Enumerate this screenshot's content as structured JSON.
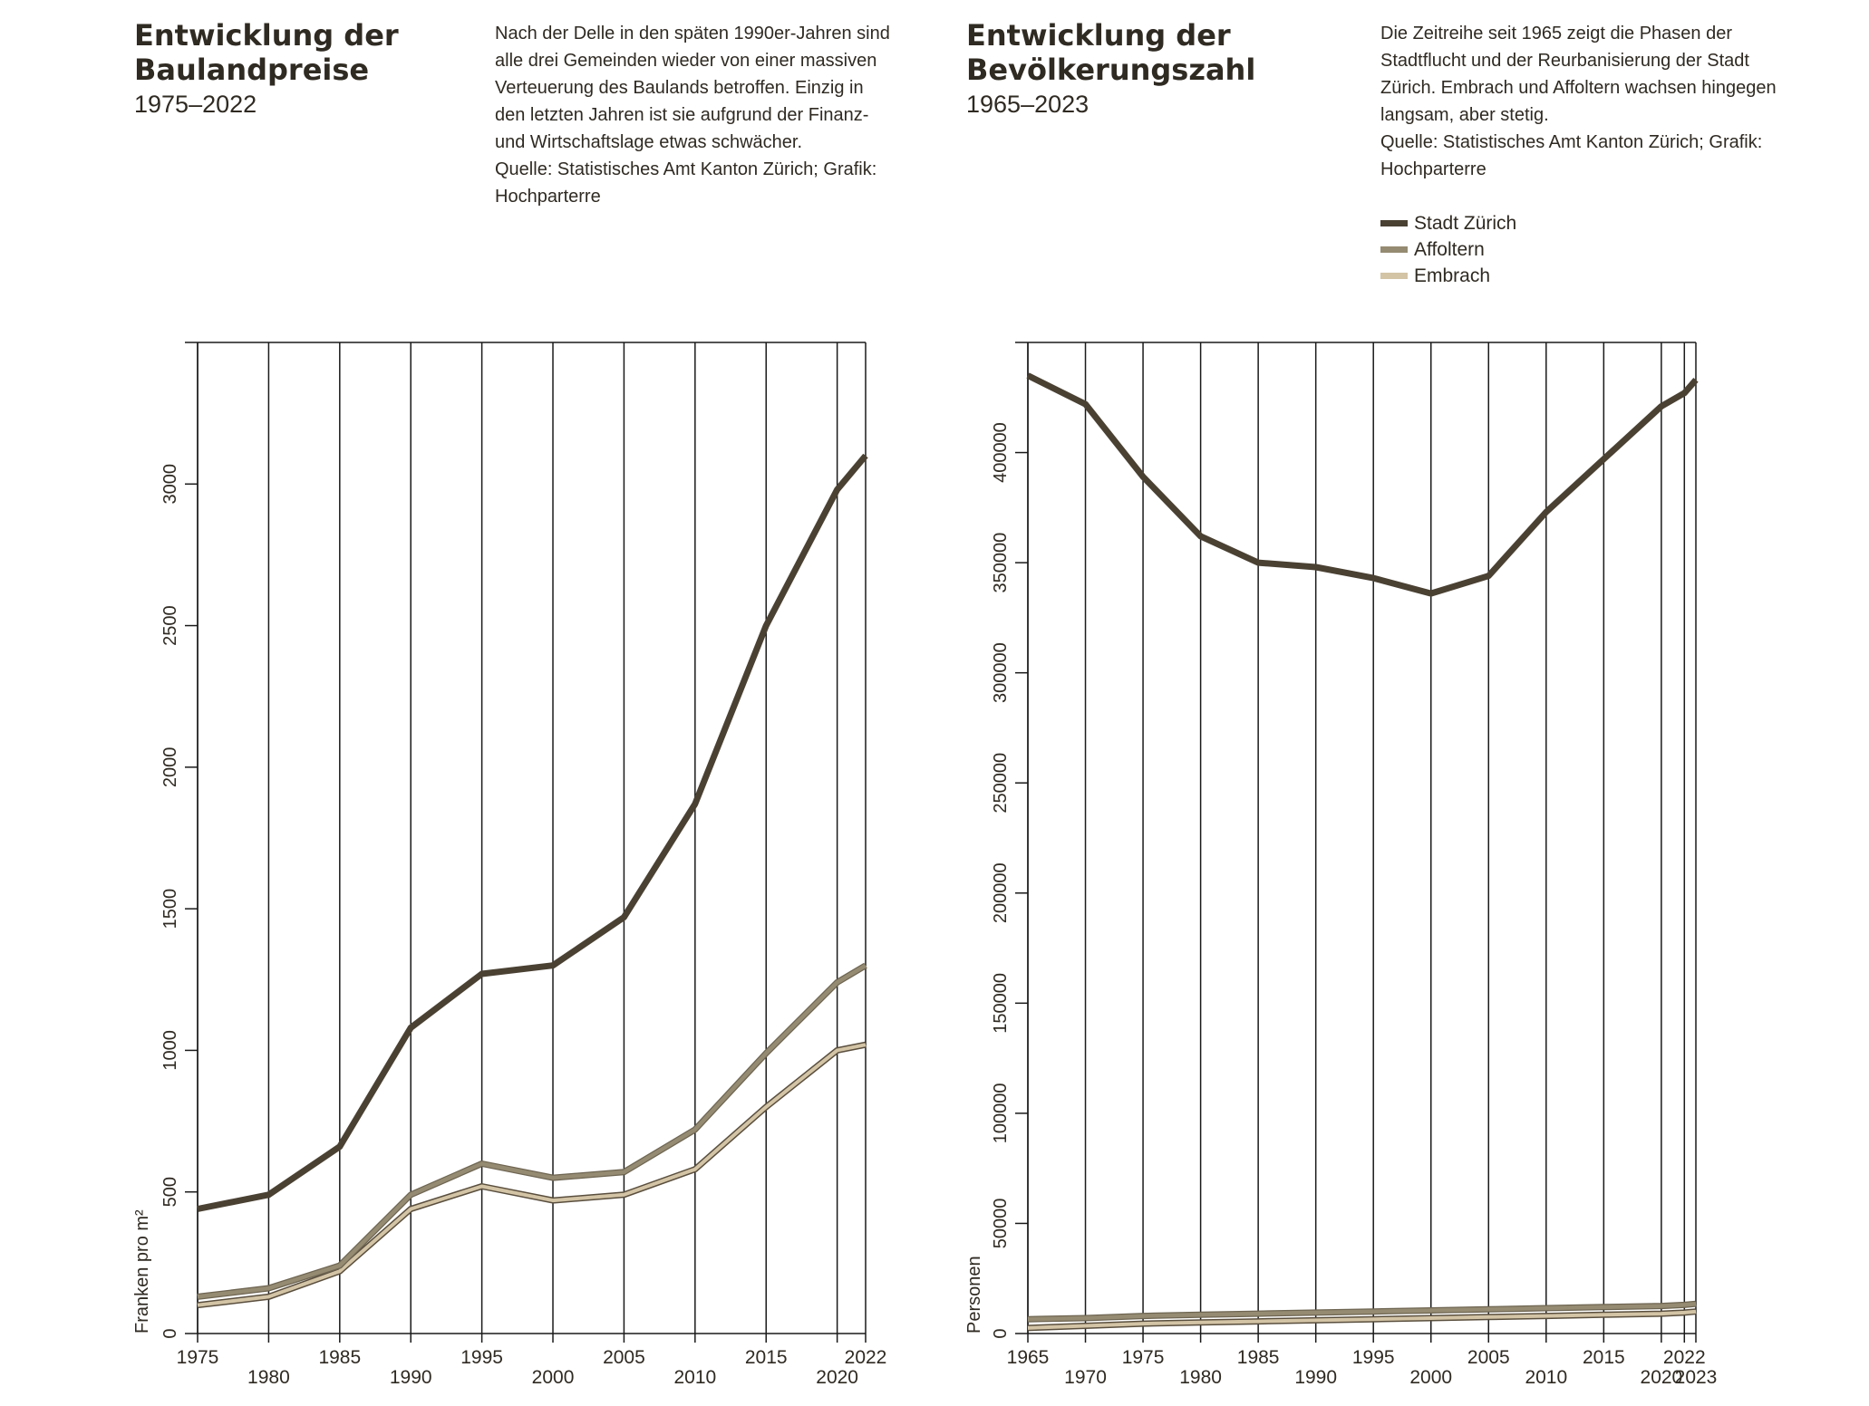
{
  "panels": {
    "left": {
      "title": "Entwicklung der\nBaulandpreise",
      "years": "1975–2022",
      "description": "Nach der Delle in den späten 1990er-Jahren sind alle drei Gemeinden wieder von einer massiven Verteuerung des Baulands betroffen. Einzig in den letzten Jahren ist sie aufgrund der Finanz- und Wirtschaftslage etwas schwächer.",
      "source": "Quelle: Statistisches Amt Kanton Zürich; Grafik: Hochparterre"
    },
    "right": {
      "title": "Entwicklung der\nBevölkerungszahl",
      "years": "1965–2023",
      "description": "Die Zeitreihe seit 1965 zeigt die Phasen der Stadtflucht und der Reurbanisierung der Stadt Zürich. Embrach und Affoltern wachsen hingegen langsam, aber stetig.",
      "source": "Quelle: Statistisches Amt Kanton Zürich; Grafik: Hochparterre"
    }
  },
  "legend": [
    {
      "label": "Stadt Zürich",
      "color": "#4a4133"
    },
    {
      "label": "Affoltern",
      "color": "#958b72"
    },
    {
      "label": "Embrach",
      "color": "#d3c4a6"
    }
  ],
  "colors": {
    "stadt_zuerich": "#4a4133",
    "affoltern": "#958b72",
    "embrach": "#d3c4a6",
    "embrach_outline": "#5a4f3e",
    "grid": "#1a1a1a",
    "text": "#2f2a22"
  },
  "chart_data": [
    {
      "type": "line",
      "title": "Entwicklung der Baulandpreise",
      "ylabel": "Franken pro m²",
      "xlabel": "",
      "x": [
        "1975",
        "1980",
        "1985",
        "1990",
        "1995",
        "2000",
        "2005",
        "2010",
        "2015",
        "2020",
        "2022"
      ],
      "x_tick_labels": [
        "1975",
        "1980",
        "1985",
        "1990",
        "1995",
        "2000",
        "2005",
        "2010",
        "2015",
        "2020",
        "2022"
      ],
      "y_ticks": [
        0,
        500,
        1000,
        1500,
        2000,
        2500,
        3000
      ],
      "ylim": [
        0,
        3500
      ],
      "grid": "vertical",
      "legend": "none",
      "series": [
        {
          "name": "Stadt Zürich",
          "values": [
            440,
            490,
            660,
            1080,
            1270,
            1300,
            1470,
            1870,
            2500,
            2980,
            3100
          ]
        },
        {
          "name": "Affoltern",
          "values": [
            130,
            160,
            240,
            490,
            600,
            550,
            570,
            720,
            990,
            1240,
            1300
          ]
        },
        {
          "name": "Embrach",
          "values": [
            100,
            130,
            220,
            440,
            520,
            470,
            490,
            580,
            800,
            1000,
            1020
          ]
        }
      ]
    },
    {
      "type": "line",
      "title": "Entwicklung der Bevölkerungszahl",
      "ylabel": "Personen",
      "xlabel": "",
      "x": [
        "1965",
        "1970",
        "1975",
        "1980",
        "1985",
        "1990",
        "1995",
        "2000",
        "2005",
        "2010",
        "2015",
        "2020",
        "2022",
        "2023"
      ],
      "x_tick_labels": [
        "1965",
        "1970",
        "1975",
        "1980",
        "1985",
        "1990",
        "1995",
        "2000",
        "2005",
        "2010",
        "2015",
        "2020",
        "2022",
        "2023"
      ],
      "y_ticks": [
        0,
        50000,
        100000,
        150000,
        200000,
        250000,
        300000,
        350000,
        400000
      ],
      "y_tick_labels": [
        "0",
        "50000",
        "100000",
        "150000",
        "200000",
        "250000",
        "300000",
        "350000",
        "400000"
      ],
      "ylim": [
        0,
        450000
      ],
      "grid": "vertical",
      "legend": "top-right",
      "series": [
        {
          "name": "Stadt Zürich",
          "values": [
            435000,
            422000,
            389000,
            362000,
            350000,
            348000,
            343000,
            336000,
            344000,
            373000,
            397000,
            421000,
            427000,
            433000
          ]
        },
        {
          "name": "Affoltern",
          "values": [
            6500,
            7000,
            8000,
            8500,
            9000,
            9500,
            10000,
            10500,
            11000,
            11500,
            12000,
            12500,
            13000,
            13500
          ]
        },
        {
          "name": "Embrach",
          "values": [
            2500,
            3500,
            4500,
            5000,
            5500,
            6000,
            6500,
            7000,
            7500,
            8000,
            8500,
            9000,
            9500,
            10000
          ]
        }
      ]
    }
  ]
}
